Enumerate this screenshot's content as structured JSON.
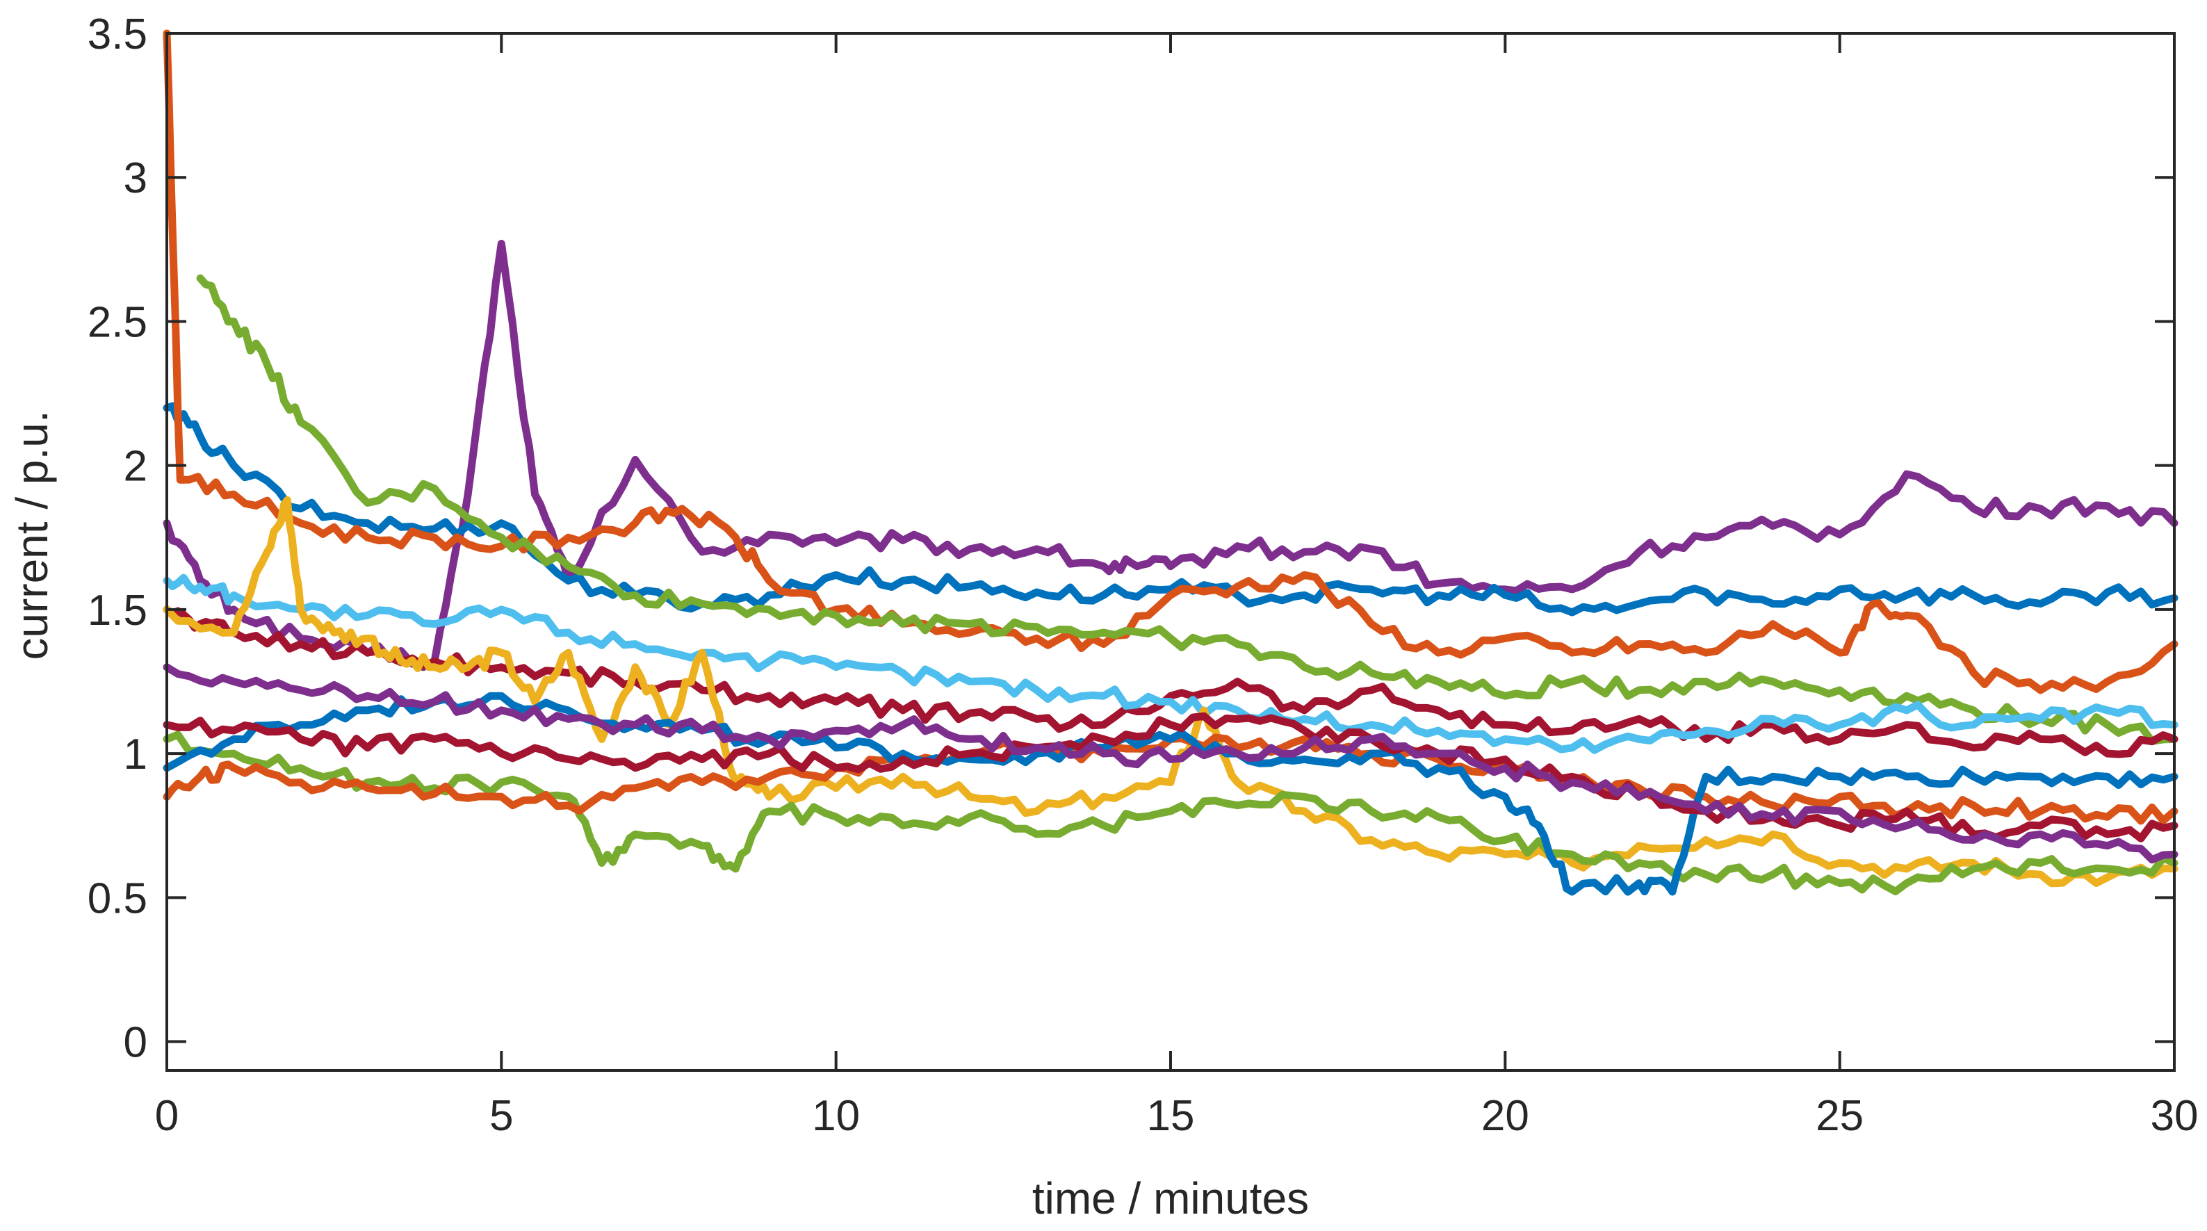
{
  "chart_data": {
    "type": "line",
    "title": "",
    "xlabel": "time / minutes",
    "ylabel": "current / p.u.",
    "xlim": [
      0,
      30
    ],
    "ylim": [
      -0.1,
      3.5
    ],
    "xticks": [
      0,
      5,
      10,
      15,
      20,
      25,
      30
    ],
    "xtick_labels": [
      "0",
      "5",
      "10",
      "15",
      "20",
      "25",
      "30"
    ],
    "yticks": [
      0,
      0.5,
      1,
      1.5,
      2,
      2.5,
      3,
      3.5
    ],
    "ytick_labels": [
      "0",
      "0.5",
      "1",
      "1.5",
      "2",
      "2.5",
      "3",
      "3.5"
    ],
    "grid": false,
    "legend": "none",
    "colors": {
      "blue": "#0072BD",
      "orange": "#D95319",
      "yellow": "#EDB120",
      "purple": "#7E2F8E",
      "green": "#77AC30",
      "cyan": "#4DBEEE",
      "red": "#A2142F",
      "axis": "#262626"
    },
    "series": [
      {
        "color": "#7E2F8E",
        "x": [
          0,
          0.5,
          1,
          2,
          3,
          4,
          4.5,
          5,
          5.5,
          6,
          7,
          8,
          9,
          10,
          11,
          12,
          13,
          14,
          14.5,
          15,
          16,
          17,
          18,
          19,
          20,
          21,
          22,
          23,
          24,
          25,
          26,
          27,
          28,
          29,
          30
        ],
        "y": [
          1.8,
          1.6,
          1.5,
          1.4,
          1.35,
          1.32,
          1.9,
          2.77,
          1.9,
          1.6,
          2.02,
          1.7,
          1.76,
          1.73,
          1.74,
          1.71,
          1.71,
          1.65,
          1.65,
          1.65,
          1.72,
          1.7,
          1.71,
          1.59,
          1.57,
          1.57,
          1.7,
          1.75,
          1.79,
          1.76,
          1.97,
          1.85,
          1.85,
          1.86,
          1.8
        ]
      },
      {
        "color": "#0072BD",
        "x": [
          0,
          0.5,
          1,
          2,
          3,
          4,
          5,
          6,
          7,
          8,
          9,
          10,
          11,
          12,
          13,
          14,
          15,
          16,
          17,
          18,
          19,
          20,
          21,
          22,
          23,
          24,
          25,
          26,
          27,
          28,
          29,
          30
        ],
        "y": [
          2.2,
          2.1,
          2.0,
          1.85,
          1.8,
          1.78,
          1.8,
          1.6,
          1.55,
          1.52,
          1.55,
          1.62,
          1.6,
          1.58,
          1.56,
          1.55,
          1.57,
          1.55,
          1.55,
          1.57,
          1.55,
          1.55,
          1.49,
          1.52,
          1.56,
          1.52,
          1.57,
          1.55,
          1.55,
          1.52,
          1.56,
          1.54
        ]
      },
      {
        "color": "#D95319",
        "x": [
          0,
          0.2,
          1,
          2,
          3,
          4,
          5,
          6,
          7,
          7.7,
          8.5,
          9,
          10,
          11,
          12,
          13,
          14,
          15,
          16,
          17,
          18,
          19,
          20,
          21,
          22,
          23,
          24,
          25,
          25.5,
          26,
          27,
          28,
          29,
          30
        ],
        "y": [
          3.5,
          1.95,
          1.9,
          1.8,
          1.75,
          1.75,
          1.72,
          1.75,
          1.8,
          1.85,
          1.75,
          1.6,
          1.5,
          1.45,
          1.42,
          1.4,
          1.38,
          1.55,
          1.58,
          1.62,
          1.45,
          1.35,
          1.4,
          1.35,
          1.38,
          1.35,
          1.45,
          1.35,
          1.52,
          1.48,
          1.28,
          1.22,
          1.25,
          1.38
        ]
      },
      {
        "color": "#77AC30",
        "x": [
          0.5,
          1,
          1.5,
          2,
          3,
          4,
          5,
          6,
          7,
          8,
          9,
          10,
          11,
          12,
          13,
          14,
          15,
          16,
          17,
          18,
          19,
          20,
          21,
          22,
          23,
          24,
          25,
          26,
          27,
          28,
          29,
          30
        ],
        "y": [
          2.65,
          2.5,
          2.35,
          2.15,
          1.87,
          1.92,
          1.75,
          1.65,
          1.55,
          1.52,
          1.5,
          1.48,
          1.45,
          1.45,
          1.44,
          1.42,
          1.4,
          1.38,
          1.3,
          1.28,
          1.25,
          1.2,
          1.25,
          1.22,
          1.25,
          1.25,
          1.22,
          1.2,
          1.15,
          1.12,
          1.1,
          1.05
        ]
      },
      {
        "color": "#A2142F",
        "x": [
          0,
          0.5,
          1,
          2,
          3,
          4,
          5,
          6,
          7,
          8,
          9,
          10,
          11,
          12,
          13,
          14,
          15,
          16,
          17,
          18,
          19,
          20,
          21,
          22,
          23,
          24,
          25,
          26,
          27,
          28,
          29,
          30
        ],
        "y": [
          1.5,
          1.45,
          1.42,
          1.38,
          1.35,
          1.32,
          1.3,
          1.28,
          1.25,
          1.22,
          1.2,
          1.18,
          1.15,
          1.14,
          1.12,
          1.1,
          1.2,
          1.25,
          1.15,
          1.22,
          1.15,
          1.1,
          1.08,
          1.12,
          1.05,
          1.1,
          1.05,
          1.1,
          1.02,
          1.05,
          1.0,
          1.05
        ]
      },
      {
        "color": "#4DBEEE",
        "x": [
          0,
          0.5,
          1,
          2,
          3,
          4,
          5,
          6,
          7,
          8,
          9,
          10,
          11,
          12,
          13,
          14,
          15,
          16,
          17,
          18,
          19,
          20,
          21,
          22,
          23,
          24,
          25,
          26,
          27,
          28,
          29,
          30
        ],
        "y": [
          1.6,
          1.58,
          1.55,
          1.5,
          1.48,
          1.45,
          1.5,
          1.42,
          1.38,
          1.35,
          1.32,
          1.3,
          1.28,
          1.25,
          1.22,
          1.2,
          1.18,
          1.15,
          1.12,
          1.1,
          1.08,
          1.05,
          1.02,
          1.05,
          1.08,
          1.12,
          1.1,
          1.15,
          1.1,
          1.12,
          1.15,
          1.1
        ]
      },
      {
        "color": "#EDB120",
        "x": [
          0,
          1,
          1.5,
          1.8,
          2,
          2.5,
          3,
          3.5,
          4,
          4.5,
          5,
          5.5,
          6,
          6.5,
          7,
          7.5,
          8,
          8.5,
          9,
          10,
          11,
          12,
          13,
          14,
          15,
          15.5,
          16,
          17,
          18,
          19,
          20,
          21,
          22,
          23,
          24,
          25,
          26,
          27,
          28,
          29,
          30
        ],
        "y": [
          1.5,
          1.42,
          1.7,
          1.88,
          1.5,
          1.42,
          1.4,
          1.32,
          1.3,
          1.3,
          1.35,
          1.18,
          1.35,
          1.05,
          1.3,
          1.1,
          1.35,
          0.9,
          0.85,
          0.88,
          0.92,
          0.85,
          0.8,
          0.85,
          0.9,
          1.15,
          0.9,
          0.8,
          0.7,
          0.65,
          0.65,
          0.62,
          0.68,
          0.7,
          0.72,
          0.62,
          0.6,
          0.62,
          0.58,
          0.57,
          0.6
        ]
      },
      {
        "color": "#77AC30",
        "x": [
          0,
          1,
          2,
          3,
          4,
          5,
          6,
          6.5,
          7,
          8,
          8.5,
          9,
          10,
          11,
          12,
          13,
          14,
          15,
          16,
          17,
          18,
          19,
          20,
          21,
          22,
          23,
          24,
          25,
          26,
          27,
          28,
          29,
          30
        ],
        "y": [
          1.05,
          1.0,
          0.95,
          0.9,
          0.88,
          0.9,
          0.85,
          0.62,
          0.72,
          0.68,
          0.6,
          0.8,
          0.78,
          0.75,
          0.78,
          0.72,
          0.75,
          0.8,
          0.82,
          0.85,
          0.8,
          0.78,
          0.7,
          0.65,
          0.62,
          0.58,
          0.58,
          0.55,
          0.55,
          0.6,
          0.62,
          0.6,
          0.62
        ]
      },
      {
        "color": "#D95319",
        "x": [
          0,
          0.5,
          1,
          2,
          3,
          4,
          5,
          6,
          7,
          8,
          9,
          10,
          11,
          12,
          13,
          14,
          15,
          16,
          17,
          18,
          19,
          20,
          21,
          22,
          23,
          24,
          25,
          26,
          27,
          28,
          29,
          30
        ],
        "y": [
          0.85,
          0.92,
          0.95,
          0.9,
          0.88,
          0.86,
          0.85,
          0.82,
          0.88,
          0.9,
          0.92,
          0.95,
          0.98,
          1.0,
          1.02,
          1.0,
          1.05,
          1.02,
          1.05,
          1.0,
          0.98,
          0.95,
          0.9,
          0.88,
          0.85,
          0.82,
          0.85,
          0.8,
          0.82,
          0.8,
          0.78,
          0.8
        ]
      },
      {
        "color": "#0072BD",
        "x": [
          0,
          1,
          2,
          3,
          4,
          5,
          6,
          7,
          8,
          9,
          10,
          11,
          12,
          13,
          14,
          15,
          16,
          17,
          18,
          19,
          20,
          20.5,
          21,
          22,
          22.5,
          23,
          24,
          25,
          26,
          27,
          28,
          29,
          30
        ],
        "y": [
          0.95,
          1.05,
          1.1,
          1.15,
          1.18,
          1.2,
          1.15,
          1.1,
          1.08,
          1.05,
          1.02,
          1.0,
          0.98,
          1.0,
          1.02,
          1.05,
          1.0,
          0.98,
          1.0,
          0.95,
          0.85,
          0.75,
          0.52,
          0.55,
          0.52,
          0.92,
          0.92,
          0.92,
          0.92,
          0.92,
          0.92,
          0.92,
          0.92
        ]
      },
      {
        "color": "#A2142F",
        "x": [
          0,
          1,
          2,
          3,
          4,
          5,
          6,
          7,
          8,
          9,
          10,
          11,
          12,
          13,
          14,
          15,
          16,
          17,
          18,
          19,
          20,
          21,
          22,
          23,
          24,
          25,
          26,
          27,
          28,
          29,
          30
        ],
        "y": [
          1.1,
          1.08,
          1.05,
          1.02,
          1.05,
          1.0,
          0.98,
          0.95,
          0.98,
          1.0,
          0.95,
          0.98,
          1.0,
          1.02,
          1.05,
          1.1,
          1.12,
          1.08,
          1.05,
          1.0,
          0.98,
          0.92,
          0.85,
          0.8,
          0.78,
          0.75,
          0.8,
          0.72,
          0.75,
          0.72,
          0.75
        ]
      },
      {
        "color": "#7E2F8E",
        "x": [
          0,
          1,
          2,
          3,
          4,
          5,
          6,
          7,
          8,
          9,
          10,
          11,
          12,
          13,
          14,
          15,
          16,
          17,
          18,
          19,
          20,
          21,
          22,
          23,
          24,
          25,
          26,
          27,
          28,
          29,
          30
        ],
        "y": [
          1.3,
          1.25,
          1.22,
          1.2,
          1.18,
          1.15,
          1.12,
          1.1,
          1.08,
          1.05,
          1.08,
          1.1,
          1.05,
          1.02,
          1.0,
          0.98,
          1.0,
          1.02,
          1.05,
          1.0,
          0.95,
          0.9,
          0.85,
          0.8,
          0.78,
          0.8,
          0.75,
          0.7,
          0.72,
          0.68,
          0.65
        ]
      }
    ]
  }
}
